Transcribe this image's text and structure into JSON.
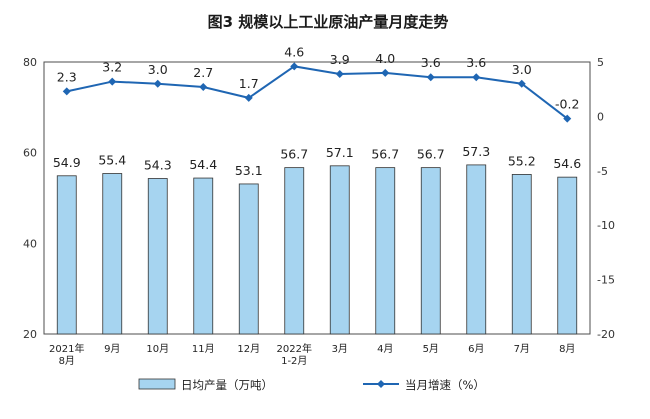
{
  "chart_data": {
    "type": "bar",
    "title": "图3  规模以上工业原油产量月度走势",
    "categories": [
      [
        "2021年",
        "8月"
      ],
      [
        "9月"
      ],
      [
        "10月"
      ],
      [
        "11月"
      ],
      [
        "12月"
      ],
      [
        "2022年",
        "1-2月"
      ],
      [
        "3月"
      ],
      [
        "4月"
      ],
      [
        "5月"
      ],
      [
        "6月"
      ],
      [
        "7月"
      ],
      [
        "8月"
      ]
    ],
    "series": [
      {
        "name": "日均产量（万吨）",
        "type": "bar",
        "axis": "left",
        "color": "#a6d4f0",
        "values": [
          54.9,
          55.4,
          54.3,
          54.4,
          53.1,
          56.7,
          57.1,
          56.7,
          56.7,
          57.3,
          55.2,
          54.6
        ],
        "labels": [
          "54.9",
          "55.4",
          "54.3",
          "54.4",
          "53.1",
          "56.7",
          "57.1",
          "56.7",
          "56.7",
          "57.3",
          "55.2",
          "54.6"
        ]
      },
      {
        "name": "当月增速（%）",
        "type": "line",
        "axis": "right",
        "color": "#1f66b3",
        "values": [
          2.3,
          3.2,
          3.0,
          2.7,
          1.7,
          4.6,
          3.9,
          4.0,
          3.6,
          3.6,
          3.0,
          -0.2
        ],
        "labels": [
          "2.3",
          "3.2",
          "3.0",
          "2.7",
          "1.7",
          "4.6",
          "3.9",
          "4.0",
          "3.6",
          "3.6",
          "3.0",
          "-0.2"
        ]
      }
    ],
    "y_left": {
      "min": 20,
      "max": 80,
      "ticks": [
        20,
        40,
        60,
        80
      ]
    },
    "y_right": {
      "min": -20,
      "max": 5,
      "ticks": [
        5,
        0,
        -5,
        -10,
        -15,
        -20
      ]
    },
    "grid": false,
    "legend_position": "bottom"
  }
}
